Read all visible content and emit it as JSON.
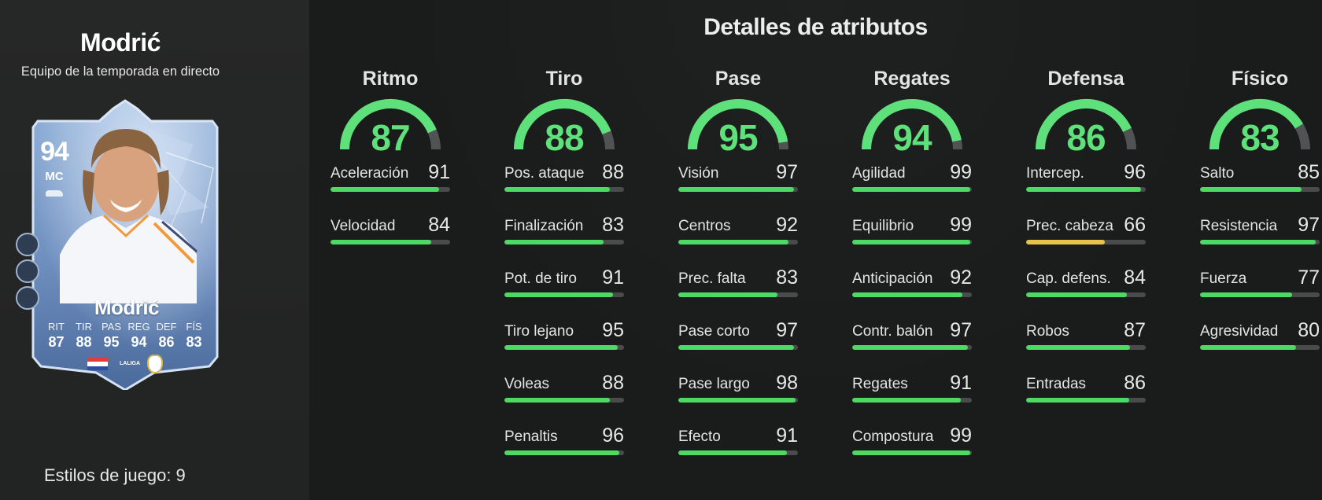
{
  "player": {
    "name": "Modrić",
    "subtitle": "Equipo de la temporada en directo",
    "play_styles_label": "Estilos de juego: 9"
  },
  "card": {
    "rating": "94",
    "position": "MC",
    "name": "Modrić",
    "stats": [
      {
        "label": "RIT",
        "value": "87"
      },
      {
        "label": "TIR",
        "value": "88"
      },
      {
        "label": "PAS",
        "value": "95"
      },
      {
        "label": "REG",
        "value": "94"
      },
      {
        "label": "DEF",
        "value": "86"
      },
      {
        "label": "FÍS",
        "value": "83"
      }
    ],
    "league_label": "LALIGA",
    "colors": {
      "card_blue": "#7d9cc6",
      "card_dark": "#3f5d8c",
      "frame": "#c9d8ea"
    }
  },
  "details": {
    "title": "Detalles de atributos",
    "categories": [
      {
        "name": "Ritmo",
        "value": 87,
        "attributes": [
          {
            "name": "Aceleración",
            "value": 91
          },
          {
            "name": "Velocidad",
            "value": 84
          }
        ]
      },
      {
        "name": "Tiro",
        "value": 88,
        "attributes": [
          {
            "name": "Pos. ataque",
            "value": 88
          },
          {
            "name": "Finalización",
            "value": 83
          },
          {
            "name": "Pot. de tiro",
            "value": 91
          },
          {
            "name": "Tiro lejano",
            "value": 95
          },
          {
            "name": "Voleas",
            "value": 88
          },
          {
            "name": "Penaltis",
            "value": 96
          }
        ]
      },
      {
        "name": "Pase",
        "value": 95,
        "attributes": [
          {
            "name": "Visión",
            "value": 97
          },
          {
            "name": "Centros",
            "value": 92
          },
          {
            "name": "Prec. falta",
            "value": 83
          },
          {
            "name": "Pase corto",
            "value": 97
          },
          {
            "name": "Pase largo",
            "value": 98
          },
          {
            "name": "Efecto",
            "value": 91
          }
        ]
      },
      {
        "name": "Regates",
        "value": 94,
        "attributes": [
          {
            "name": "Agilidad",
            "value": 99
          },
          {
            "name": "Equilibrio",
            "value": 99
          },
          {
            "name": "Anticipación",
            "value": 92
          },
          {
            "name": "Contr. balón",
            "value": 97
          },
          {
            "name": "Regates",
            "value": 91
          },
          {
            "name": "Compostura",
            "value": 99
          }
        ]
      },
      {
        "name": "Defensa",
        "value": 86,
        "attributes": [
          {
            "name": "Intercep.",
            "value": 96
          },
          {
            "name": "Prec. cabeza",
            "value": 66
          },
          {
            "name": "Cap. defens.",
            "value": 84
          },
          {
            "name": "Robos",
            "value": 87
          },
          {
            "name": "Entradas",
            "value": 86
          }
        ]
      },
      {
        "name": "Físico",
        "value": 83,
        "attributes": [
          {
            "name": "Salto",
            "value": 85
          },
          {
            "name": "Resistencia",
            "value": 97
          },
          {
            "name": "Fuerza",
            "value": 77
          },
          {
            "name": "Agresividad",
            "value": 80
          }
        ]
      }
    ]
  },
  "colors": {
    "gauge_green": "#5ee07a",
    "bar_green": "#4cd964",
    "bar_yellow": "#e8c34a",
    "bar_track": "#4a4c4c",
    "gauge_track": "#505353"
  }
}
